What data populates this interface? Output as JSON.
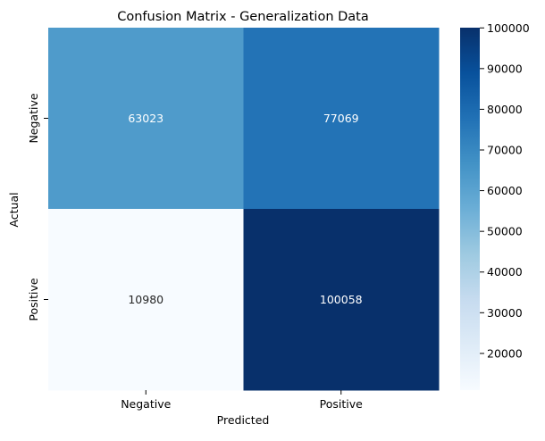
{
  "chart_data": {
    "type": "heatmap",
    "title": "Confusion Matrix - Generalization Data",
    "xlabel": "Predicted",
    "ylabel": "Actual",
    "x_categories": [
      "Negative",
      "Positive"
    ],
    "y_categories": [
      "Negative",
      "Positive"
    ],
    "values": [
      [
        63023,
        77069
      ],
      [
        10980,
        100058
      ]
    ],
    "colormap": "Blues",
    "color_low": "#f7fbff",
    "color_high": "#08306b",
    "colorbar": {
      "ticks": [
        20000,
        30000,
        40000,
        50000,
        60000,
        70000,
        80000,
        90000,
        100000
      ],
      "range": [
        10980,
        100058
      ]
    }
  }
}
